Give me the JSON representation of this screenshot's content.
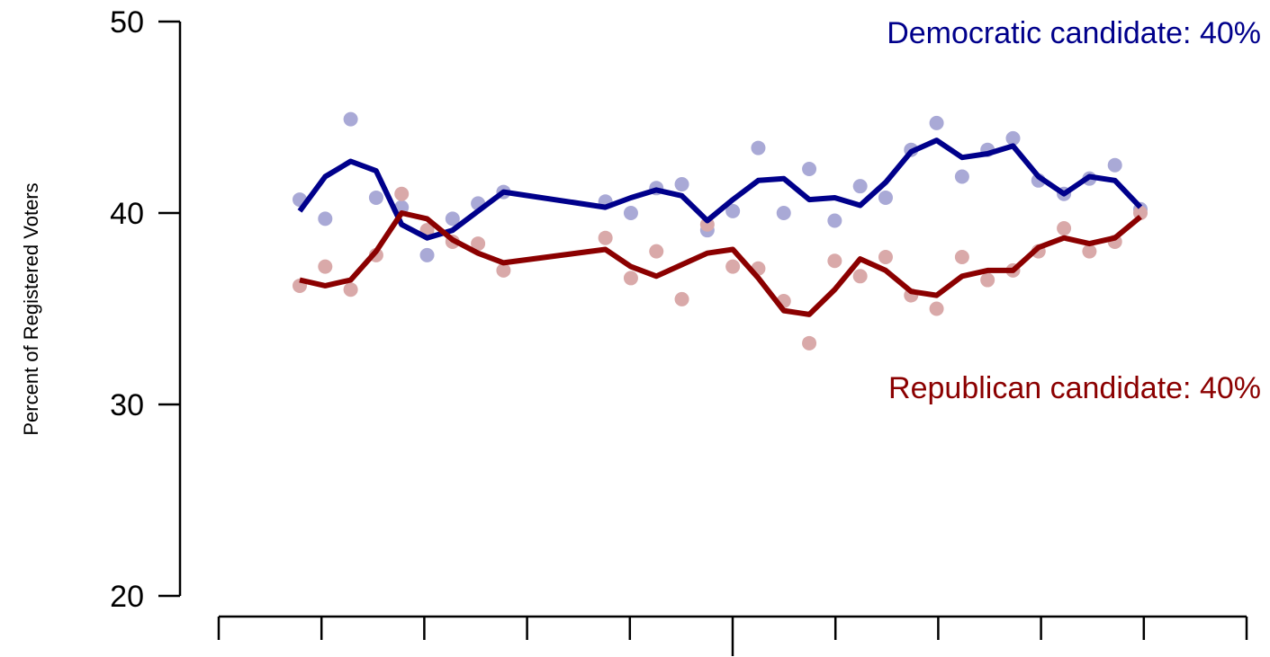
{
  "chart_data": {
    "type": "line",
    "ylabel": "Percent of Registered Voters",
    "ylim": [
      20,
      50
    ],
    "yticks": [
      20,
      30,
      40,
      50
    ],
    "x_tick_count_minor": 9,
    "x_tick_major_index": 4,
    "grid": false,
    "series": [
      {
        "name": "Democratic candidate: 40%",
        "color": "#00008B",
        "point_color": "#A9A9D6",
        "points": [
          [
            1,
            40.7
          ],
          [
            2,
            39.7
          ],
          [
            3,
            44.9
          ],
          [
            4,
            40.8
          ],
          [
            5,
            40.3
          ],
          [
            6,
            37.8
          ],
          [
            7,
            39.7
          ],
          [
            8,
            40.5
          ],
          [
            9,
            41.1
          ],
          [
            13,
            40.6
          ],
          [
            14,
            40.0
          ],
          [
            15,
            41.3
          ],
          [
            16,
            41.5
          ],
          [
            17,
            39.1
          ],
          [
            18,
            40.1
          ],
          [
            19,
            43.4
          ],
          [
            20,
            40.0
          ],
          [
            21,
            42.3
          ],
          [
            22,
            39.6
          ],
          [
            23,
            41.4
          ],
          [
            24,
            40.8
          ],
          [
            25,
            43.3
          ],
          [
            26,
            44.7
          ],
          [
            27,
            41.9
          ],
          [
            28,
            43.3
          ],
          [
            29,
            43.9
          ],
          [
            30,
            41.7
          ],
          [
            31,
            41.0
          ],
          [
            32,
            41.8
          ],
          [
            33,
            42.5
          ],
          [
            34,
            40.2
          ]
        ],
        "trend": [
          [
            1,
            40.1
          ],
          [
            2,
            41.9
          ],
          [
            3,
            42.7
          ],
          [
            4,
            42.2
          ],
          [
            5,
            39.4
          ],
          [
            6,
            38.7
          ],
          [
            7,
            39.1
          ],
          [
            8,
            40.1
          ],
          [
            9,
            41.1
          ],
          [
            13,
            40.3
          ],
          [
            14,
            40.8
          ],
          [
            15,
            41.2
          ],
          [
            16,
            40.9
          ],
          [
            17,
            39.6
          ],
          [
            18,
            40.7
          ],
          [
            19,
            41.7
          ],
          [
            20,
            41.8
          ],
          [
            21,
            40.7
          ],
          [
            22,
            40.8
          ],
          [
            23,
            40.4
          ],
          [
            24,
            41.6
          ],
          [
            25,
            43.2
          ],
          [
            26,
            43.8
          ],
          [
            27,
            42.9
          ],
          [
            28,
            43.1
          ],
          [
            29,
            43.5
          ],
          [
            30,
            41.9
          ],
          [
            31,
            41.0
          ],
          [
            32,
            41.9
          ],
          [
            33,
            41.7
          ],
          [
            34,
            40.3
          ]
        ]
      },
      {
        "name": "Republican candidate: 40%",
        "color": "#8B0000",
        "point_color": "#D9A9A9",
        "points": [
          [
            1,
            36.2
          ],
          [
            2,
            37.2
          ],
          [
            3,
            36.0
          ],
          [
            4,
            37.8
          ],
          [
            5,
            41.0
          ],
          [
            6,
            39.1
          ],
          [
            7,
            38.5
          ],
          [
            8,
            38.4
          ],
          [
            9,
            37.0
          ],
          [
            13,
            38.7
          ],
          [
            14,
            36.6
          ],
          [
            15,
            38.0
          ],
          [
            16,
            35.5
          ],
          [
            17,
            39.4
          ],
          [
            18,
            37.2
          ],
          [
            19,
            37.1
          ],
          [
            20,
            35.4
          ],
          [
            21,
            33.2
          ],
          [
            22,
            37.5
          ],
          [
            23,
            36.7
          ],
          [
            24,
            37.7
          ],
          [
            25,
            35.7
          ],
          [
            26,
            35.0
          ],
          [
            27,
            37.7
          ],
          [
            28,
            36.5
          ],
          [
            29,
            37.0
          ],
          [
            30,
            38.0
          ],
          [
            31,
            39.2
          ],
          [
            32,
            38.0
          ],
          [
            33,
            38.5
          ],
          [
            34,
            40.0
          ]
        ],
        "trend": [
          [
            1,
            36.5
          ],
          [
            2,
            36.2
          ],
          [
            3,
            36.5
          ],
          [
            4,
            38.0
          ],
          [
            5,
            40.0
          ],
          [
            6,
            39.7
          ],
          [
            7,
            38.6
          ],
          [
            8,
            37.9
          ],
          [
            9,
            37.4
          ],
          [
            13,
            38.1
          ],
          [
            14,
            37.2
          ],
          [
            15,
            36.7
          ],
          [
            16,
            37.3
          ],
          [
            17,
            37.9
          ],
          [
            18,
            38.1
          ],
          [
            19,
            36.6
          ],
          [
            20,
            34.9
          ],
          [
            21,
            34.7
          ],
          [
            22,
            36.0
          ],
          [
            23,
            37.6
          ],
          [
            24,
            37.0
          ],
          [
            25,
            35.9
          ],
          [
            26,
            35.7
          ],
          [
            27,
            36.7
          ],
          [
            28,
            37.0
          ],
          [
            29,
            37.0
          ],
          [
            30,
            38.2
          ],
          [
            31,
            38.7
          ],
          [
            32,
            38.4
          ],
          [
            33,
            38.7
          ],
          [
            34,
            39.8
          ]
        ]
      }
    ]
  }
}
